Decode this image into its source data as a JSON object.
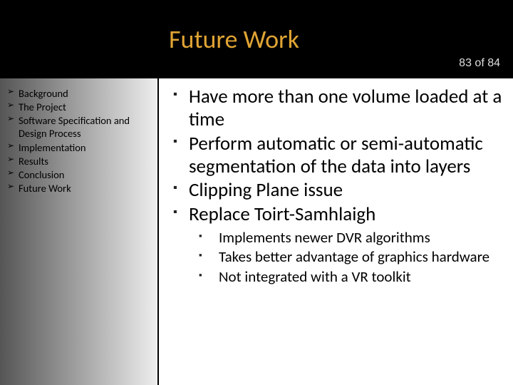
{
  "header": {
    "title": "Future Work",
    "page_counter": "83 of 84",
    "title_color": "#e0a434",
    "bg_color": "#000000"
  },
  "sidebar": {
    "gradient_from": "#555555",
    "gradient_to": "#eeeeee",
    "items": [
      "Background",
      "The Project",
      "Software Specification and Design Process",
      "Implementation",
      "Results",
      "Conclusion",
      "Future Work"
    ]
  },
  "main": {
    "bullets": [
      {
        "text": "Have more than one volume loaded at a time"
      },
      {
        "text": "Perform automatic or semi-automatic segmentation of the data into layers"
      },
      {
        "text": "Clipping Plane issue"
      },
      {
        "text": "Replace Toirt-Samhlaigh",
        "sub": [
          "Implements newer DVR algorithms",
          "Takes better advantage of graphics hardware",
          "Not integrated with a VR toolkit"
        ]
      }
    ]
  }
}
